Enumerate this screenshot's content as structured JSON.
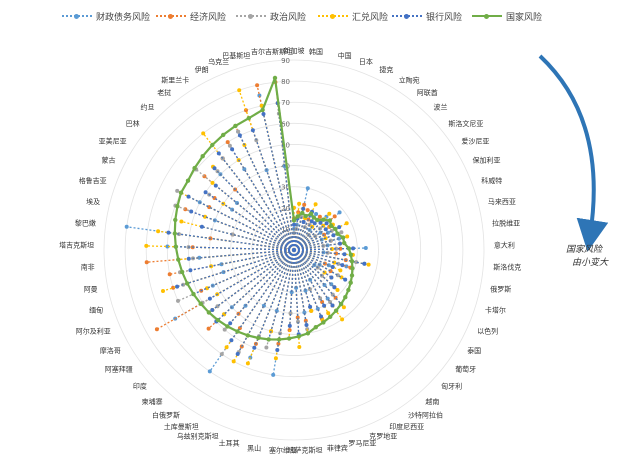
{
  "chart_data": {
    "type": "radar",
    "max": 90,
    "rings": [
      0,
      10,
      20,
      30,
      40,
      50,
      60,
      70,
      80,
      90
    ],
    "annotation": [
      "国家风险",
      "由小变大"
    ],
    "countries": [
      "新加坡",
      "韩国",
      "中国",
      "日本",
      "捷克",
      "立陶宛",
      "阿联酋",
      "波兰",
      "斯洛文尼亚",
      "爱沙尼亚",
      "保加利亚",
      "科威特",
      "马来西亚",
      "拉脱维亚",
      "意大利",
      "斯洛伐克",
      "俄罗斯",
      "卡塔尔",
      "以色列",
      "泰国",
      "葡萄牙",
      "匈牙利",
      "越南",
      "沙特阿拉伯",
      "印度尼西亚",
      "克罗地亚",
      "罗马尼亚",
      "菲律宾",
      "哈萨克斯坦",
      "塞尔维亚",
      "黑山",
      "土耳其",
      "乌兹别克斯坦",
      "土库曼斯坦",
      "白俄罗斯",
      "柬埔寨",
      "印度",
      "阿塞拜疆",
      "摩洛哥",
      "阿尔及利亚",
      "缅甸",
      "阿曼",
      "南非",
      "塔吉克斯坦",
      "黎巴嫩",
      "埃及",
      "格鲁吉亚",
      "蒙古",
      "亚美尼亚",
      "巴林",
      "约旦",
      "老挝",
      "斯里兰卡",
      "伊朗",
      "乌克兰",
      "巴基斯坦",
      "吉尔吉斯斯坦"
    ],
    "series": [
      {
        "name": "财政债务风险",
        "color": "#5b9bd5",
        "values": [
          10,
          12,
          30,
          14,
          18,
          20,
          12,
          22,
          28,
          15,
          18,
          14,
          22,
          16,
          34,
          14,
          34,
          26,
          18,
          14,
          12,
          24,
          22,
          28,
          16,
          30,
          20,
          30,
          18,
          20,
          60,
          30,
          55,
          30,
          70,
          35,
          40,
          50,
          65,
          42,
          35,
          35,
          45,
          60,
          80,
          30,
          40,
          50,
          35,
          35,
          50,
          55,
          45,
          62,
          40,
          75,
          40
        ]
      },
      {
        "name": "经济风险",
        "color": "#ed7d31",
        "values": [
          15,
          18,
          22,
          20,
          16,
          14,
          20,
          18,
          25,
          20,
          16,
          22,
          18,
          22,
          22,
          20,
          25,
          28,
          16,
          20,
          22,
          26,
          30,
          32,
          28,
          35,
          30,
          34,
          32,
          38,
          45,
          40,
          48,
          52,
          45,
          40,
          55,
          50,
          75,
          48,
          60,
          60,
          70,
          48,
          40,
          30,
          55,
          45,
          45,
          55,
          40,
          55,
          60,
          65,
          70,
          80,
          80
        ]
      },
      {
        "name": "政治风险",
        "color": "#a5a5a5",
        "values": [
          8,
          10,
          16,
          14,
          12,
          14,
          18,
          10,
          16,
          12,
          20,
          24,
          18,
          14,
          20,
          16,
          30,
          22,
          20,
          24,
          14,
          18,
          28,
          30,
          26,
          20,
          28,
          38,
          34,
          30,
          40,
          48,
          44,
          55,
          60,
          50,
          45,
          45,
          50,
          60,
          55,
          55,
          48,
          50,
          55,
          30,
          60,
          62,
          48,
          60,
          52,
          55,
          58,
          62,
          55,
          70,
          65
        ]
      },
      {
        "name": "汇兑风险",
        "color": "#ffc000",
        "values": [
          20,
          22,
          20,
          16,
          24,
          18,
          14,
          24,
          18,
          22,
          28,
          16,
          26,
          24,
          18,
          28,
          36,
          20,
          24,
          26,
          18,
          28,
          36,
          40,
          34,
          36,
          30,
          40,
          46,
          42,
          52,
          40,
          58,
          60,
          56,
          48,
          45,
          48,
          42,
          45,
          65,
          40,
          55,
          70,
          65,
          55,
          45,
          60,
          40,
          50,
          55,
          70,
          50,
          55,
          80,
          70,
          70
        ]
      },
      {
        "name": "银行风险",
        "color": "#4472c4",
        "values": [
          12,
          15,
          20,
          14,
          20,
          16,
          16,
          18,
          20,
          18,
          24,
          20,
          24,
          22,
          28,
          24,
          34,
          24,
          20,
          28,
          22,
          26,
          34,
          32,
          30,
          34,
          28,
          36,
          40,
          36,
          48,
          44,
          50,
          56,
          52,
          46,
          50,
          48,
          46,
          52,
          58,
          50,
          50,
          56,
          60,
          45,
          52,
          56,
          50,
          48,
          54,
          58,
          56,
          60,
          60,
          66,
          70
        ]
      },
      {
        "name": "国家风险",
        "color": "#70ad47",
        "values": [
          14,
          16,
          18,
          17,
          19,
          18,
          18,
          20,
          22,
          21,
          22,
          22,
          24,
          24,
          26,
          27,
          28,
          29,
          30,
          31,
          32,
          33,
          34,
          35,
          36,
          37,
          38,
          40,
          41,
          42,
          43,
          44,
          45,
          46,
          47,
          48,
          49,
          50,
          51,
          52,
          53,
          54,
          55,
          56,
          57,
          58,
          59,
          60,
          60,
          61,
          62,
          63,
          64,
          65,
          66,
          68,
          82
        ]
      }
    ]
  }
}
